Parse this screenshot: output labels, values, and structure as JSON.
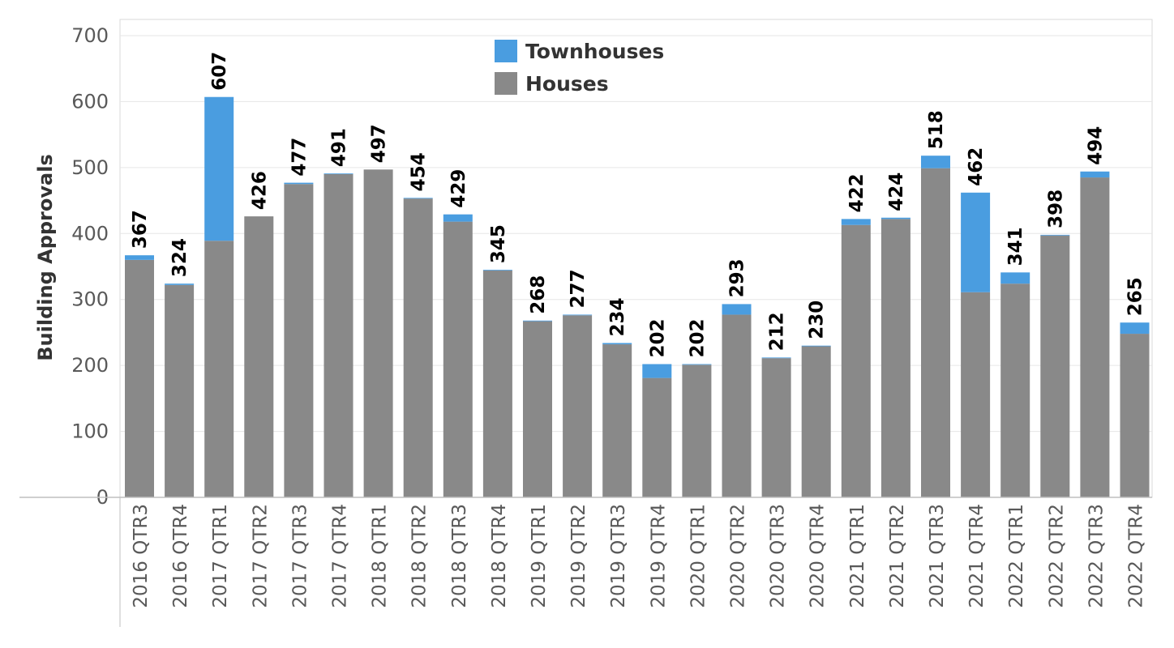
{
  "chart_data": {
    "type": "bar",
    "stacked": true,
    "ylabel": "Building Approvals",
    "xlabel": "",
    "ylim": [
      0,
      700
    ],
    "yticks": [
      0,
      100,
      200,
      300,
      400,
      500,
      600,
      700
    ],
    "grid": true,
    "legend_position": "top-center",
    "categories": [
      "2016 QTR3",
      "2016 QTR4",
      "2017 QTR1",
      "2017 QTR2",
      "2017 QTR3",
      "2017 QTR4",
      "2018 QTR1",
      "2018 QTR2",
      "2018 QTR3",
      "2018 QTR4",
      "2019 QTR1",
      "2019 QTR2",
      "2019 QTR3",
      "2019 QTR4",
      "2020 QTR1",
      "2020 QTR2",
      "2020 QTR3",
      "2020 QTR4",
      "2021 QTR1",
      "2021 QTR2",
      "2021 QTR3",
      "2021 QTR4",
      "2022 QTR1",
      "2022 QTR2",
      "2022 QTR3",
      "2022 QTR4"
    ],
    "series": [
      {
        "name": "Houses",
        "color": "#898989",
        "values": [
          360,
          322,
          389,
          426,
          475,
          490,
          497,
          453,
          418,
          344,
          267,
          276,
          232,
          181,
          201,
          277,
          211,
          229,
          413,
          422,
          499,
          311,
          324,
          397,
          485,
          248
        ]
      },
      {
        "name": "Townhouses",
        "color": "#4a9de0",
        "values": [
          7,
          2,
          218,
          0,
          2,
          1,
          0,
          1,
          11,
          1,
          1,
          1,
          2,
          21,
          1,
          16,
          1,
          1,
          9,
          2,
          19,
          151,
          17,
          1,
          9,
          17
        ]
      }
    ],
    "totals": [
      367,
      324,
      607,
      426,
      477,
      491,
      497,
      454,
      429,
      345,
      268,
      277,
      234,
      202,
      202,
      293,
      212,
      230,
      422,
      424,
      518,
      462,
      341,
      398,
      494,
      265
    ],
    "legend_order": [
      "Townhouses",
      "Houses"
    ]
  }
}
